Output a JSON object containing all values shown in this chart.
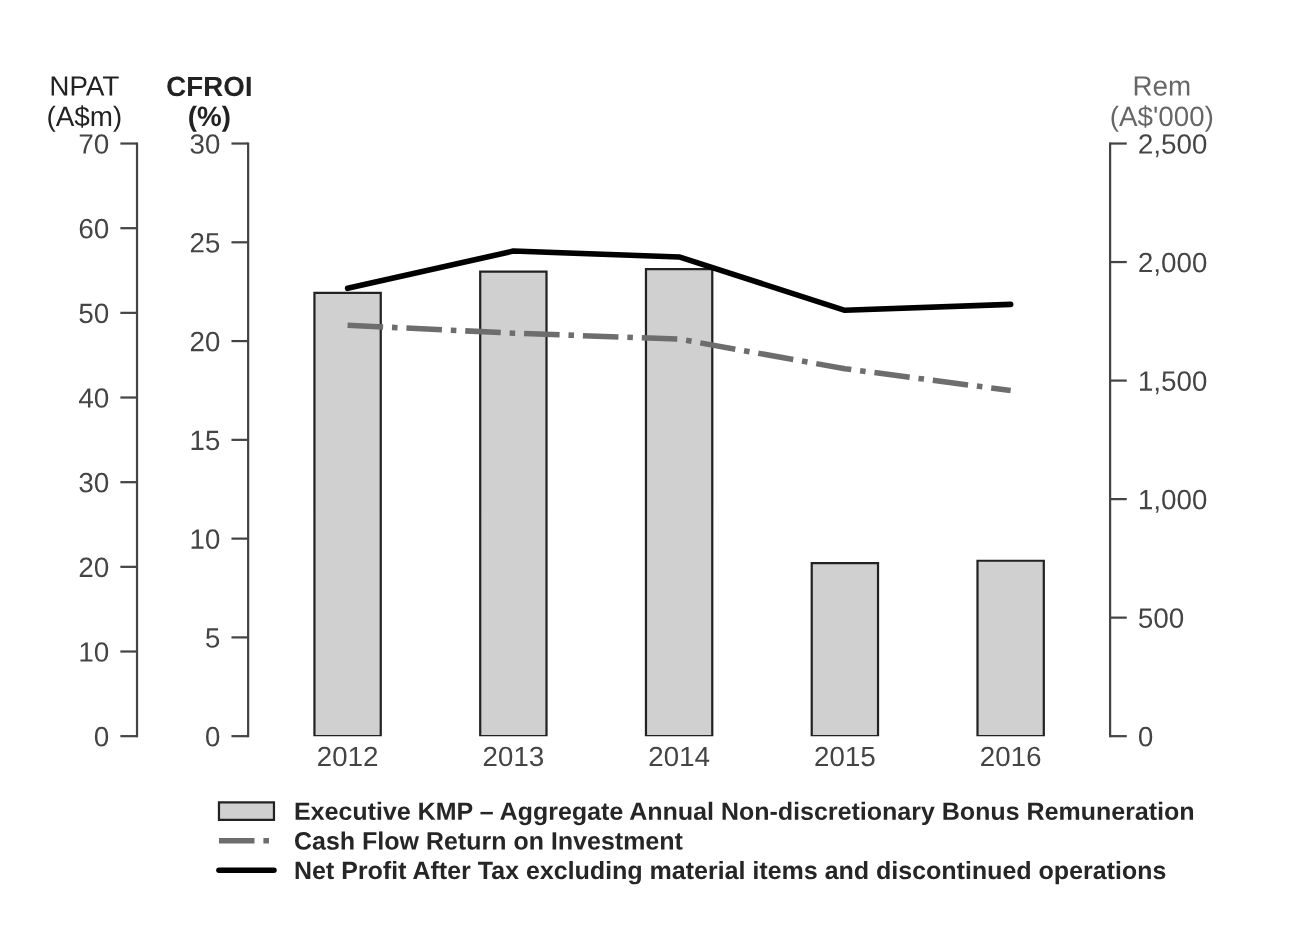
{
  "chart_data": {
    "type": "bar",
    "categories": [
      "2012",
      "2013",
      "2014",
      "2015",
      "2016"
    ],
    "ylabel": "CFROI\n(%)",
    "y2label": "Rem\n(A$'000)",
    "y3label": "NPAT\n(A$m)",
    "ylim": [
      0,
      30
    ],
    "yticks": [
      0,
      5,
      10,
      15,
      20,
      25,
      30
    ],
    "y2lim": [
      0,
      2500
    ],
    "y2ticks": [
      0,
      500,
      {
        "value": 1000,
        "label": "1,000"
      },
      {
        "value": 1500,
        "label": "1,500"
      },
      {
        "value": 2000,
        "label": "2,000"
      },
      {
        "value": 2500,
        "label": "2,500"
      }
    ],
    "y3lim": [
      0,
      70
    ],
    "y3ticks": [
      0,
      10,
      20,
      30,
      40,
      50,
      60,
      70
    ],
    "series": [
      {
        "name": "Executive KMP – Aggregate Annual Non-discretionary Bonus Remuneration",
        "axis": "y2",
        "color": "#d0d0d0",
        "values": [
          1870,
          1960,
          1970,
          730,
          740
        ]
      },
      {
        "name": "Cash Flow Return on Investment",
        "type": "line",
        "axis": "y",
        "color": "#6d6d6d",
        "line_style": "dashdot",
        "values": [
          20.8,
          20.4,
          20.1,
          18.6,
          17.5
        ]
      },
      {
        "name": "Net Profit After Tax excluding material items and discontinued operations",
        "type": "line",
        "axis": "y3",
        "color": "#000000",
        "line_style": "solid",
        "values": [
          52.9,
          57.3,
          56.6,
          50.3,
          51.0
        ]
      }
    ],
    "grid": false,
    "legend": "bottom",
    "marker": "none"
  }
}
